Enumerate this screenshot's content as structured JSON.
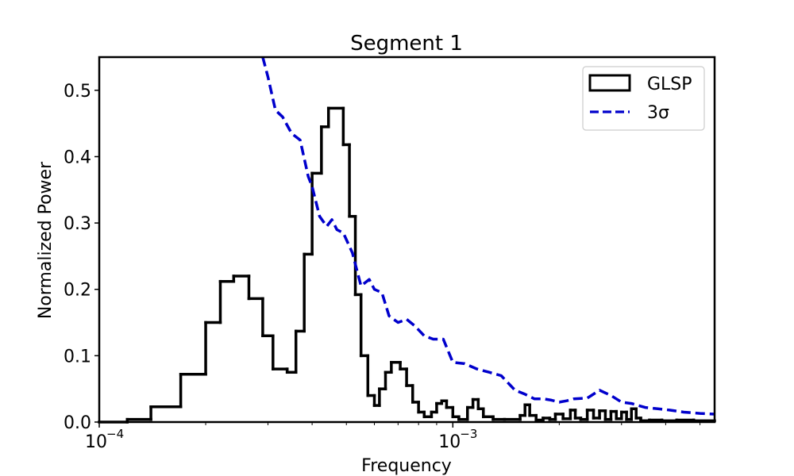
{
  "chart_data": {
    "type": "line",
    "title": "Segment 1",
    "xlabel": "Frequency",
    "ylabel": "Normalized Power",
    "xscale": "log",
    "xlim": [
      0.0001,
      0.0055
    ],
    "ylim": [
      0,
      0.55
    ],
    "grid": false,
    "legend_position": "top-right",
    "x_ticks": [
      {
        "value": 0.0001,
        "base": "10",
        "exponent": "−4"
      },
      {
        "value": 0.001,
        "base": "10",
        "exponent": "−3"
      }
    ],
    "y_ticks": [
      {
        "value": 0.0,
        "label": "0.0"
      },
      {
        "value": 0.1,
        "label": "0.1"
      },
      {
        "value": 0.2,
        "label": "0.2"
      },
      {
        "value": 0.3,
        "label": "0.3"
      },
      {
        "value": 0.4,
        "label": "0.4"
      },
      {
        "value": 0.5,
        "label": "0.5"
      }
    ],
    "series": [
      {
        "name": "GLSP",
        "style": "step",
        "color": "#000000",
        "x": [
          0.0001,
          0.00012,
          0.00014,
          0.00017,
          0.0002,
          0.00022,
          0.00024,
          0.000265,
          0.00029,
          0.00031,
          0.00034,
          0.00036,
          0.00038,
          0.0004,
          0.000425,
          0.000445,
          0.00049,
          0.00051,
          0.00053,
          0.00055,
          0.000575,
          0.0006,
          0.00062,
          0.000645,
          0.00067,
          0.00071,
          0.00074,
          0.00077,
          0.0008,
          0.00083,
          0.00087,
          0.0009,
          0.00093,
          0.00096,
          0.001,
          0.00104,
          0.0011,
          0.00114,
          0.00118,
          0.00122,
          0.0013,
          0.0014,
          0.00155,
          0.0016,
          0.00165,
          0.00172,
          0.0018,
          0.00188,
          0.00195,
          0.00205,
          0.00215,
          0.00222,
          0.0023,
          0.0024,
          0.0025,
          0.0026,
          0.0027,
          0.0028,
          0.0029,
          0.003,
          0.0031,
          0.0032,
          0.0033,
          0.0034,
          0.0036,
          0.0039,
          0.0043,
          0.0048,
          0.0055
        ],
        "y": [
          0.0,
          0.004,
          0.023,
          0.072,
          0.15,
          0.212,
          0.22,
          0.186,
          0.13,
          0.08,
          0.075,
          0.137,
          0.253,
          0.375,
          0.445,
          0.473,
          0.418,
          0.31,
          0.192,
          0.1,
          0.04,
          0.025,
          0.05,
          0.075,
          0.09,
          0.08,
          0.055,
          0.03,
          0.015,
          0.008,
          0.015,
          0.028,
          0.032,
          0.022,
          0.008,
          0.004,
          0.022,
          0.034,
          0.02,
          0.008,
          0.004,
          0.004,
          0.01,
          0.026,
          0.01,
          0.003,
          0.006,
          0.004,
          0.012,
          0.005,
          0.018,
          0.006,
          0.004,
          0.018,
          0.006,
          0.017,
          0.004,
          0.016,
          0.005,
          0.015,
          0.004,
          0.02,
          0.006,
          0.002,
          0.003,
          0.002,
          0.003,
          0.002,
          0.002
        ]
      },
      {
        "name": "3σ",
        "style": "dashed",
        "color": "#0000cc",
        "x": [
          0.00029,
          0.0003,
          0.000315,
          0.00033,
          0.00035,
          0.00037,
          0.00039,
          0.0004,
          0.00042,
          0.00044,
          0.000455,
          0.00047,
          0.00049,
          0.00052,
          0.00055,
          0.00058,
          0.0006,
          0.00063,
          0.00066,
          0.0007,
          0.00074,
          0.00078,
          0.00083,
          0.00088,
          0.00094,
          0.001,
          0.00108,
          0.00117,
          0.00127,
          0.00137,
          0.0015,
          0.0016,
          0.0017,
          0.0018,
          0.0019,
          0.002,
          0.0021,
          0.0022,
          0.0024,
          0.0026,
          0.0028,
          0.003,
          0.0032,
          0.0035,
          0.0038,
          0.0041,
          0.0045,
          0.005,
          0.0055
        ],
        "y": [
          0.55,
          0.52,
          0.47,
          0.46,
          0.435,
          0.425,
          0.37,
          0.355,
          0.31,
          0.295,
          0.305,
          0.29,
          0.285,
          0.255,
          0.205,
          0.215,
          0.2,
          0.195,
          0.16,
          0.15,
          0.155,
          0.145,
          0.13,
          0.125,
          0.125,
          0.09,
          0.088,
          0.08,
          0.075,
          0.07,
          0.048,
          0.042,
          0.035,
          0.035,
          0.033,
          0.03,
          0.032,
          0.035,
          0.036,
          0.048,
          0.04,
          0.03,
          0.028,
          0.022,
          0.02,
          0.018,
          0.015,
          0.013,
          0.012
        ]
      }
    ]
  }
}
